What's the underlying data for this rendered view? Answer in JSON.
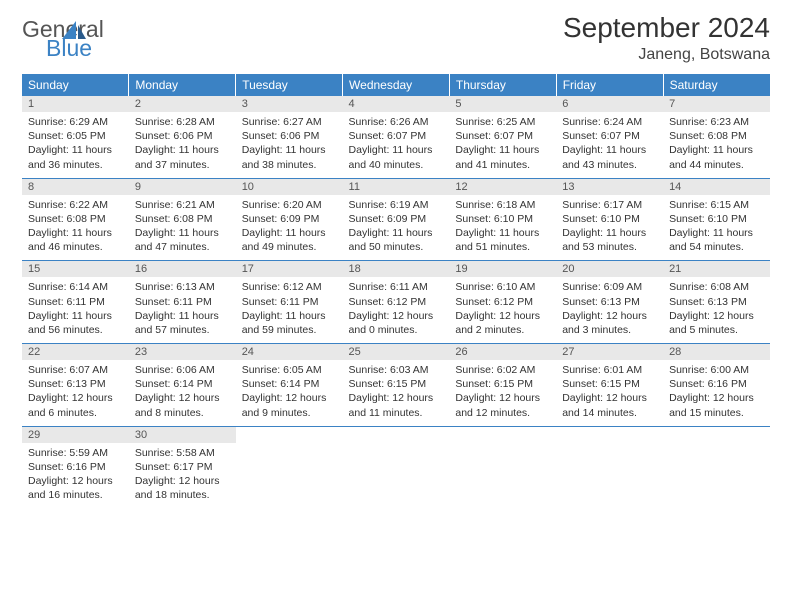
{
  "logo": {
    "line1": "General",
    "line2": "Blue"
  },
  "title": "September 2024",
  "subtitle": "Janeng, Botswana",
  "header_bg": "#3b82c4",
  "daynum_bg": "#e8e8e8",
  "rule_color": "#3b82c4",
  "columns": [
    "Sunday",
    "Monday",
    "Tuesday",
    "Wednesday",
    "Thursday",
    "Friday",
    "Saturday"
  ],
  "weeks": [
    [
      {
        "n": "1",
        "sr": "6:29 AM",
        "ss": "6:05 PM",
        "dl": "11 hours and 36 minutes."
      },
      {
        "n": "2",
        "sr": "6:28 AM",
        "ss": "6:06 PM",
        "dl": "11 hours and 37 minutes."
      },
      {
        "n": "3",
        "sr": "6:27 AM",
        "ss": "6:06 PM",
        "dl": "11 hours and 38 minutes."
      },
      {
        "n": "4",
        "sr": "6:26 AM",
        "ss": "6:07 PM",
        "dl": "11 hours and 40 minutes."
      },
      {
        "n": "5",
        "sr": "6:25 AM",
        "ss": "6:07 PM",
        "dl": "11 hours and 41 minutes."
      },
      {
        "n": "6",
        "sr": "6:24 AM",
        "ss": "6:07 PM",
        "dl": "11 hours and 43 minutes."
      },
      {
        "n": "7",
        "sr": "6:23 AM",
        "ss": "6:08 PM",
        "dl": "11 hours and 44 minutes."
      }
    ],
    [
      {
        "n": "8",
        "sr": "6:22 AM",
        "ss": "6:08 PM",
        "dl": "11 hours and 46 minutes."
      },
      {
        "n": "9",
        "sr": "6:21 AM",
        "ss": "6:08 PM",
        "dl": "11 hours and 47 minutes."
      },
      {
        "n": "10",
        "sr": "6:20 AM",
        "ss": "6:09 PM",
        "dl": "11 hours and 49 minutes."
      },
      {
        "n": "11",
        "sr": "6:19 AM",
        "ss": "6:09 PM",
        "dl": "11 hours and 50 minutes."
      },
      {
        "n": "12",
        "sr": "6:18 AM",
        "ss": "6:10 PM",
        "dl": "11 hours and 51 minutes."
      },
      {
        "n": "13",
        "sr": "6:17 AM",
        "ss": "6:10 PM",
        "dl": "11 hours and 53 minutes."
      },
      {
        "n": "14",
        "sr": "6:15 AM",
        "ss": "6:10 PM",
        "dl": "11 hours and 54 minutes."
      }
    ],
    [
      {
        "n": "15",
        "sr": "6:14 AM",
        "ss": "6:11 PM",
        "dl": "11 hours and 56 minutes."
      },
      {
        "n": "16",
        "sr": "6:13 AM",
        "ss": "6:11 PM",
        "dl": "11 hours and 57 minutes."
      },
      {
        "n": "17",
        "sr": "6:12 AM",
        "ss": "6:11 PM",
        "dl": "11 hours and 59 minutes."
      },
      {
        "n": "18",
        "sr": "6:11 AM",
        "ss": "6:12 PM",
        "dl": "12 hours and 0 minutes."
      },
      {
        "n": "19",
        "sr": "6:10 AM",
        "ss": "6:12 PM",
        "dl": "12 hours and 2 minutes."
      },
      {
        "n": "20",
        "sr": "6:09 AM",
        "ss": "6:13 PM",
        "dl": "12 hours and 3 minutes."
      },
      {
        "n": "21",
        "sr": "6:08 AM",
        "ss": "6:13 PM",
        "dl": "12 hours and 5 minutes."
      }
    ],
    [
      {
        "n": "22",
        "sr": "6:07 AM",
        "ss": "6:13 PM",
        "dl": "12 hours and 6 minutes."
      },
      {
        "n": "23",
        "sr": "6:06 AM",
        "ss": "6:14 PM",
        "dl": "12 hours and 8 minutes."
      },
      {
        "n": "24",
        "sr": "6:05 AM",
        "ss": "6:14 PM",
        "dl": "12 hours and 9 minutes."
      },
      {
        "n": "25",
        "sr": "6:03 AM",
        "ss": "6:15 PM",
        "dl": "12 hours and 11 minutes."
      },
      {
        "n": "26",
        "sr": "6:02 AM",
        "ss": "6:15 PM",
        "dl": "12 hours and 12 minutes."
      },
      {
        "n": "27",
        "sr": "6:01 AM",
        "ss": "6:15 PM",
        "dl": "12 hours and 14 minutes."
      },
      {
        "n": "28",
        "sr": "6:00 AM",
        "ss": "6:16 PM",
        "dl": "12 hours and 15 minutes."
      }
    ],
    [
      {
        "n": "29",
        "sr": "5:59 AM",
        "ss": "6:16 PM",
        "dl": "12 hours and 16 minutes."
      },
      {
        "n": "30",
        "sr": "5:58 AM",
        "ss": "6:17 PM",
        "dl": "12 hours and 18 minutes."
      },
      null,
      null,
      null,
      null,
      null
    ]
  ]
}
